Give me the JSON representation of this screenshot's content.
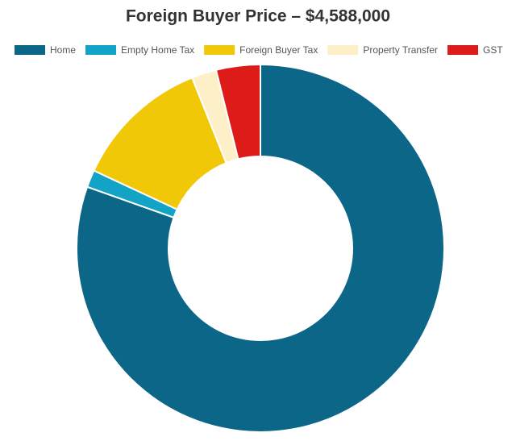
{
  "chart_data": {
    "type": "donut",
    "title": "Foreign Buyer Price – $4,588,000",
    "categories": [
      "Home",
      "Empty Home Tax",
      "Foreign Buyer Tax",
      "Property Transfer",
      "GST"
    ],
    "values": [
      3690000,
      70000,
      550000,
      100000,
      178000
    ],
    "colors": [
      "#0b6688",
      "#12a3c7",
      "#f0c808",
      "#fdefc8",
      "#dd1c1a"
    ]
  }
}
